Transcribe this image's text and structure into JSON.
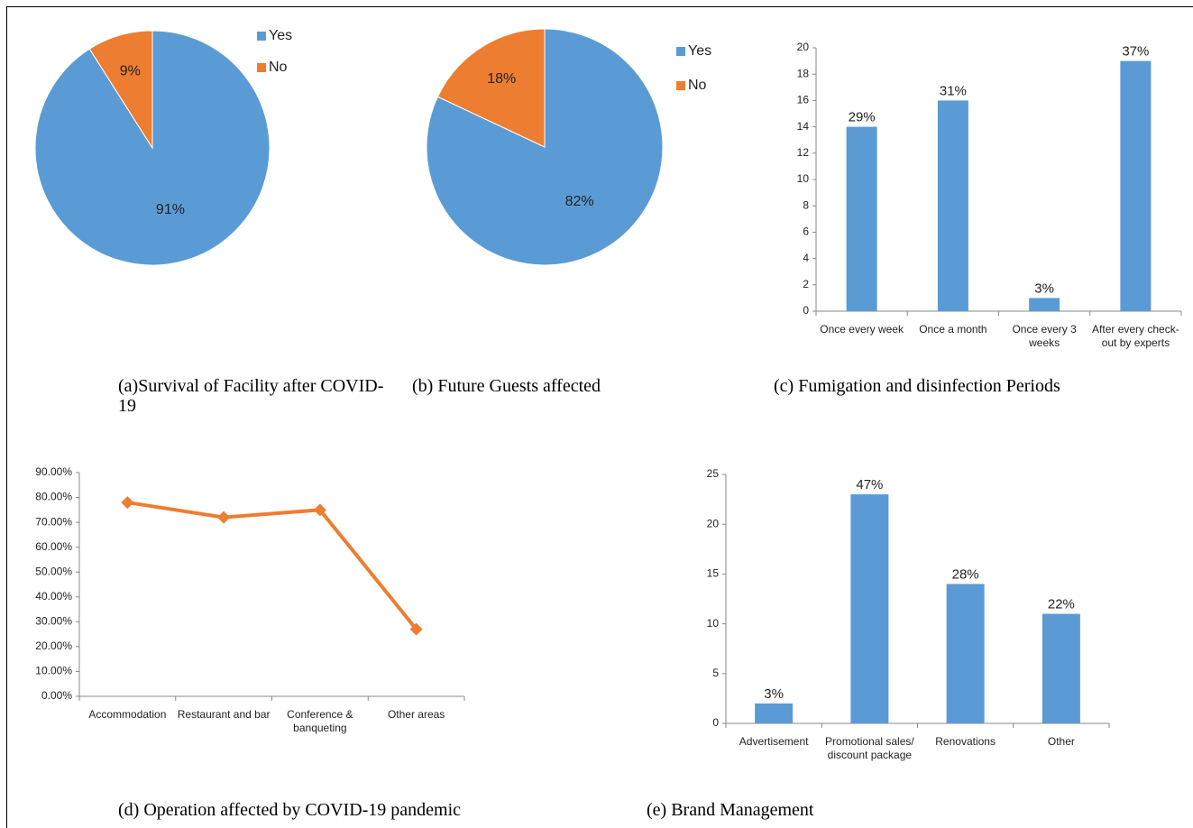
{
  "chart_data": [
    {
      "type": "pie",
      "title": "(a)Survival of Facility after COVID-19",
      "categories": [
        "Yes",
        "No"
      ],
      "values": [
        91,
        9
      ],
      "value_labels": [
        "91%",
        "9%"
      ],
      "colors": [
        "#5b9bd5",
        "#ed7d31"
      ]
    },
    {
      "type": "pie",
      "title": "(b) Future Guests affected",
      "categories": [
        "Yes",
        "No"
      ],
      "values": [
        82,
        18
      ],
      "value_labels": [
        "82%",
        "18%"
      ],
      "colors": [
        "#5b9bd5",
        "#ed7d31"
      ]
    },
    {
      "type": "bar",
      "title": "(c) Fumigation and disinfection Periods",
      "categories": [
        "Once every week",
        "Once a month",
        "Once every 3 weeks",
        "After every check-out by experts"
      ],
      "values": [
        14,
        16,
        1,
        19
      ],
      "bar_annotations": [
        "29%",
        "31%",
        "3%",
        "37%"
      ],
      "color": "#5b9bd5",
      "ylim": [
        0,
        20
      ],
      "yticks": [
        0,
        2,
        4,
        6,
        8,
        10,
        12,
        14,
        16,
        18,
        20
      ]
    },
    {
      "type": "line",
      "title": "(d) Operation affected by COVID-19 pandemic",
      "categories": [
        "Accommodation",
        "Restaurant and bar",
        "Conference & banqueting",
        "Other areas"
      ],
      "values": [
        78,
        72,
        75,
        27
      ],
      "color": "#ed7d31",
      "ylim": [
        0,
        90
      ],
      "yticks": [
        {
          "value": 0,
          "label": "0.00%"
        },
        {
          "value": 10,
          "label": "10.00%"
        },
        {
          "value": 20,
          "label": "20.00%"
        },
        {
          "value": 30,
          "label": "30.00%"
        },
        {
          "value": 40,
          "label": "40.00%"
        },
        {
          "value": 50,
          "label": "50.00%"
        },
        {
          "value": 60,
          "label": "60.00%"
        },
        {
          "value": 70,
          "label": "70.00%"
        },
        {
          "value": 80,
          "label": "80.00%"
        },
        {
          "value": 90,
          "label": "90.00%"
        }
      ]
    },
    {
      "type": "bar",
      "title": "(e) Brand Management",
      "categories": [
        "Advertisement",
        "Promotional sales/ discount package",
        "Renovations",
        "Other"
      ],
      "values": [
        2,
        23,
        14,
        11
      ],
      "bar_annotations": [
        "3%",
        "47%",
        "28%",
        "22%"
      ],
      "color": "#5b9bd5",
      "ylim": [
        0,
        25
      ],
      "yticks": [
        0,
        5,
        10,
        15,
        20,
        25
      ]
    }
  ]
}
